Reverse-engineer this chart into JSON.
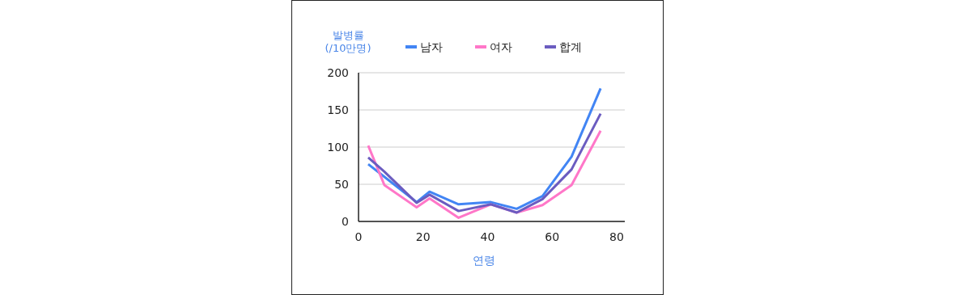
{
  "chart_data": {
    "type": "line",
    "xlabel": "연령",
    "ylabel": "발병률\n(/10만명)",
    "x": [
      3,
      8,
      18,
      22,
      31,
      41,
      49,
      57,
      66,
      75
    ],
    "series": [
      {
        "name": "남자",
        "color": "#4285f4",
        "values": [
          77,
          60,
          26,
          40,
          23,
          26,
          17,
          34,
          87,
          179
        ]
      },
      {
        "name": "여자",
        "color": "#ff77c8",
        "values": [
          102,
          49,
          19,
          31,
          5,
          23,
          12,
          22,
          49,
          122
        ]
      },
      {
        "name": "합계",
        "color": "#6b5cc0",
        "values": [
          86,
          67,
          25,
          36,
          14,
          23,
          12,
          30,
          70,
          145
        ]
      }
    ],
    "xlim": [
      0,
      82.5
    ],
    "xticks": [
      0,
      20,
      40,
      60,
      80
    ],
    "ylim": [
      0,
      200
    ],
    "yticks": [
      0,
      50,
      100,
      150,
      200
    ],
    "grid": "y",
    "legend": "top",
    "marker": "none",
    "line_style": "solid"
  }
}
